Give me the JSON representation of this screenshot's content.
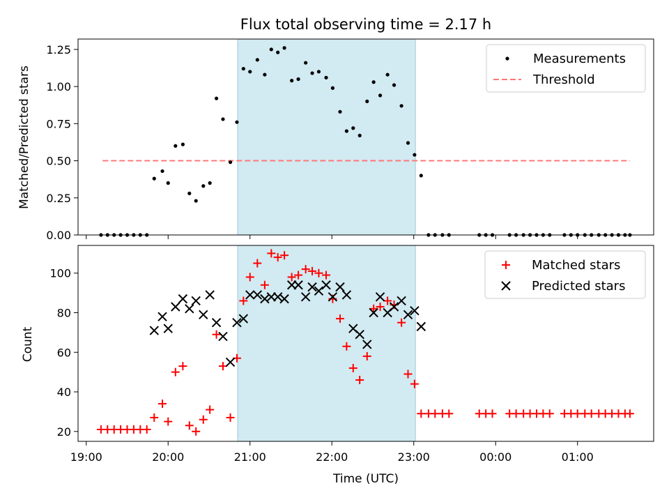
{
  "title": "Flux total observing time = 2.17 h",
  "x_axis": {
    "label": "Time (UTC)",
    "tick_labels": [
      "19:00",
      "20:00",
      "21:00",
      "22:00",
      "23:00",
      "00:00",
      "01:00"
    ],
    "tick_hours": [
      19,
      20,
      21,
      22,
      23,
      24,
      25
    ],
    "range_hours": [
      18.9,
      25.93
    ]
  },
  "highlight": {
    "start_hours": 20.85,
    "end_hours": 23.02,
    "color": "#add8e6"
  },
  "chart_data": [
    {
      "type": "scatter",
      "ylabel": "Matched/Predicted stars",
      "ylim": [
        0,
        1.32
      ],
      "yticks": [
        0,
        0.25,
        0.5,
        0.75,
        1.0,
        1.25
      ],
      "ytick_labels": [
        "0.00",
        "0.25",
        "0.50",
        "0.75",
        "1.00",
        "1.25"
      ],
      "legend_position": "top-right",
      "series": [
        {
          "name": "Measurements",
          "color": "#000000",
          "marker": "dot",
          "x": [
            19.18,
            19.26,
            19.34,
            19.42,
            19.5,
            19.58,
            19.66,
            19.74,
            19.83,
            19.93,
            20.0,
            20.09,
            20.18,
            20.26,
            20.34,
            20.43,
            20.51,
            20.59,
            20.67,
            20.76,
            20.84,
            20.92,
            21.0,
            21.09,
            21.18,
            21.26,
            21.34,
            21.42,
            21.51,
            21.59,
            21.68,
            21.76,
            21.84,
            21.93,
            22.01,
            22.1,
            22.18,
            22.26,
            22.34,
            22.43,
            22.51,
            22.59,
            22.68,
            22.76,
            22.85,
            22.93,
            23.01,
            23.09,
            23.18,
            23.26,
            23.35,
            23.43,
            23.8,
            23.88,
            23.96,
            24.17,
            24.25,
            24.34,
            24.42,
            24.5,
            24.58,
            24.66,
            24.84,
            24.92,
            25.0,
            25.09,
            25.17,
            25.26,
            25.34,
            25.42,
            25.5,
            25.58,
            25.64
          ],
          "y": [
            0,
            0,
            0,
            0,
            0,
            0,
            0,
            0,
            0.38,
            0.43,
            0.35,
            0.6,
            0.61,
            0.28,
            0.23,
            0.33,
            0.35,
            0.92,
            0.78,
            0.49,
            0.76,
            1.12,
            1.1,
            1.18,
            1.08,
            1.25,
            1.23,
            1.26,
            1.04,
            1.05,
            1.16,
            1.09,
            1.1,
            1.06,
            0.99,
            0.83,
            0.7,
            0.72,
            0.67,
            0.9,
            1.03,
            0.94,
            1.08,
            1.01,
            0.87,
            0.62,
            0.54,
            0.4,
            0,
            0,
            0,
            0,
            0,
            0,
            0,
            0,
            0,
            0,
            0,
            0,
            0,
            0,
            0,
            0,
            0,
            0,
            0,
            0,
            0,
            0,
            0,
            0,
            0
          ]
        },
        {
          "name": "Threshold",
          "color": "#ff7777",
          "style": "dashed",
          "x": [
            19.2,
            25.64
          ],
          "y": [
            0.5,
            0.5
          ]
        }
      ]
    },
    {
      "type": "scatter",
      "ylabel": "Count",
      "ylim": [
        15,
        114
      ],
      "yticks": [
        20,
        40,
        60,
        80,
        100
      ],
      "ytick_labels": [
        "20",
        "40",
        "60",
        "80",
        "100"
      ],
      "legend_position": "top-right",
      "series": [
        {
          "name": "Matched stars",
          "color": "#ff0000",
          "marker": "plus",
          "x": [
            19.18,
            19.26,
            19.34,
            19.42,
            19.5,
            19.58,
            19.66,
            19.74,
            19.83,
            19.93,
            20.0,
            20.09,
            20.18,
            20.26,
            20.34,
            20.43,
            20.51,
            20.59,
            20.67,
            20.76,
            20.84,
            20.92,
            21.0,
            21.09,
            21.18,
            21.26,
            21.34,
            21.42,
            21.51,
            21.59,
            21.68,
            21.76,
            21.84,
            21.93,
            22.01,
            22.1,
            22.18,
            22.26,
            22.34,
            22.43,
            22.51,
            22.59,
            22.68,
            22.76,
            22.85,
            22.93,
            23.01,
            23.09,
            23.18,
            23.26,
            23.35,
            23.43,
            23.8,
            23.88,
            23.96,
            24.17,
            24.25,
            24.34,
            24.42,
            24.5,
            24.58,
            24.66,
            24.84,
            24.92,
            25.0,
            25.09,
            25.17,
            25.26,
            25.34,
            25.42,
            25.5,
            25.58,
            25.64
          ],
          "y": [
            21,
            21,
            21,
            21,
            21,
            21,
            21,
            21,
            27,
            34,
            25,
            50,
            53,
            23,
            20,
            26,
            31,
            69,
            53,
            27,
            57,
            86,
            98,
            105,
            94,
            110,
            108,
            109,
            98,
            99,
            102,
            101,
            100,
            99,
            87,
            77,
            63,
            52,
            46,
            58,
            82,
            83,
            86,
            84,
            75,
            49,
            44,
            29,
            29,
            29,
            29,
            29,
            29,
            29,
            29,
            29,
            29,
            29,
            29,
            29,
            29,
            29,
            29,
            29,
            29,
            29,
            29,
            29,
            29,
            29,
            29,
            29,
            29
          ]
        },
        {
          "name": "Predicted stars",
          "color": "#000000",
          "marker": "x",
          "x": [
            19.83,
            19.93,
            20.0,
            20.09,
            20.18,
            20.26,
            20.34,
            20.43,
            20.51,
            20.59,
            20.67,
            20.76,
            20.84,
            20.92,
            21.0,
            21.09,
            21.18,
            21.26,
            21.34,
            21.42,
            21.51,
            21.59,
            21.68,
            21.76,
            21.84,
            21.93,
            22.01,
            22.1,
            22.18,
            22.26,
            22.34,
            22.43,
            22.51,
            22.59,
            22.68,
            22.76,
            22.85,
            22.93,
            23.01,
            23.09
          ],
          "y": [
            71,
            78,
            72,
            83,
            87,
            82,
            86,
            79,
            89,
            75,
            68,
            55,
            75,
            77,
            89,
            89,
            87,
            88,
            88,
            87,
            94,
            94,
            88,
            93,
            91,
            94,
            88,
            93,
            89,
            72,
            69,
            64,
            80,
            88,
            80,
            83,
            86,
            79,
            81,
            73
          ]
        }
      ]
    }
  ]
}
